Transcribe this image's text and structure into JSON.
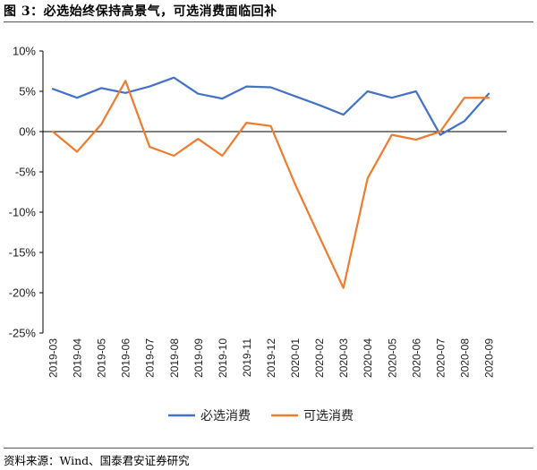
{
  "figure": {
    "title": "图 3：必选始终保持高景气，可选消费面临回补",
    "source": "资料来源：Wind、国泰君安证券研究"
  },
  "colors": {
    "series_1": "#4472C4",
    "series_2": "#ED7D31",
    "axis": "#000000"
  },
  "chart_data": {
    "type": "line",
    "title": "",
    "xlabel": "",
    "ylabel": "",
    "x": [
      "2019-03",
      "2019-04",
      "2019-05",
      "2019-06",
      "2019-07",
      "2019-08",
      "2019-09",
      "2019-10",
      "2019-11",
      "2019-12",
      "2020-01",
      "2020-02",
      "2020-03",
      "2020-04",
      "2020-05",
      "2020-06",
      "2020-07",
      "2020-08",
      "2020-09"
    ],
    "ylim": [
      -25,
      10
    ],
    "yticks": [
      10,
      5,
      0,
      -5,
      -10,
      -15,
      -20,
      -25
    ],
    "ytick_labels": [
      "10%",
      "5%",
      "0%",
      "-5%",
      "-10%",
      "-15%",
      "-20%",
      "-25%"
    ],
    "grid": false,
    "legend_position": "bottom",
    "series": [
      {
        "name": "必选消费",
        "values": [
          5.3,
          4.2,
          5.4,
          4.8,
          5.6,
          6.7,
          4.7,
          4.1,
          5.6,
          5.5,
          4.4,
          3.3,
          2.1,
          5.0,
          4.2,
          5.0,
          -0.4,
          1.3,
          4.7
        ]
      },
      {
        "name": "可选消费",
        "values": [
          0.0,
          -2.5,
          0.9,
          6.3,
          -1.9,
          -3.0,
          -0.9,
          -3.0,
          1.1,
          0.7,
          -6.5,
          -13.0,
          -19.4,
          -5.8,
          -0.4,
          -1.0,
          0.0,
          4.2,
          4.2
        ]
      }
    ]
  }
}
